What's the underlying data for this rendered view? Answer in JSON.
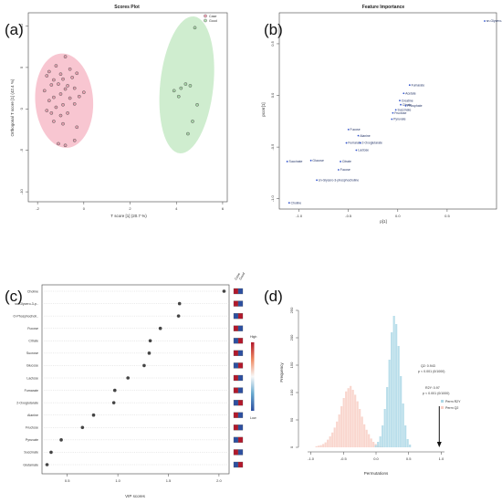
{
  "panel_labels": [
    "(a)",
    "(b)",
    "(c)",
    "(d)"
  ],
  "chart_data": [
    {
      "panel": "(a)",
      "type": "scatter",
      "title": "Scores Plot",
      "xlabel": "T score [1] (20.7 %)",
      "ylabel": "Orthogonal T score [1] (42.4 %)",
      "xlim": [
        -2.4,
        6.2
      ],
      "ylim": [
        -11.2,
        11.6
      ],
      "xticks": [
        "-2",
        "0",
        "2",
        "4",
        "6"
      ],
      "yticks": [
        "10",
        "5",
        "0",
        "-5",
        "-10"
      ],
      "legend": [
        "Case",
        "Good"
      ],
      "legend_position": "top-right",
      "colors": {
        "case_fill": "#f4a7b9",
        "good_fill": "#b5e3b5",
        "point": "#555555"
      },
      "series": [
        {
          "name": "Case",
          "points": [
            [
              -1.2,
              5.2
            ],
            [
              -0.8,
              6.3
            ],
            [
              -1.5,
              4.5
            ],
            [
              -0.6,
              4.8
            ],
            [
              -1.0,
              4.2
            ],
            [
              -1.6,
              4.0
            ],
            [
              -0.3,
              4.3
            ],
            [
              -1.3,
              3.5
            ],
            [
              -0.9,
              3.6
            ],
            [
              -0.5,
              3.8
            ],
            [
              -1.1,
              3.0
            ],
            [
              -1.4,
              2.9
            ],
            [
              -0.8,
              2.4
            ],
            [
              -1.7,
              2.2
            ],
            [
              -0.4,
              2.5
            ],
            [
              -1.0,
              1.8
            ],
            [
              -1.3,
              1.4
            ],
            [
              -0.6,
              1.3
            ],
            [
              0.0,
              2.0
            ],
            [
              -1.5,
              1.0
            ],
            [
              -0.9,
              0.5
            ],
            [
              -1.2,
              0.2
            ],
            [
              -0.4,
              0.6
            ],
            [
              -1.6,
              -0.2
            ],
            [
              -1.0,
              -0.8
            ],
            [
              -0.7,
              -0.5
            ],
            [
              -1.3,
              -1.5
            ],
            [
              -0.9,
              -1.8
            ],
            [
              -0.3,
              -2.2
            ],
            [
              -1.1,
              -4.2
            ],
            [
              -0.8,
              -4.4
            ],
            [
              -0.4,
              -3.8
            ],
            [
              -1.4,
              -0.5
            ],
            [
              -0.2,
              1.5
            ],
            [
              -0.7,
              2.8
            ]
          ]
        },
        {
          "name": "Good",
          "points": [
            [
              4.8,
              9.8
            ],
            [
              3.9,
              2.2
            ],
            [
              4.2,
              2.5
            ],
            [
              4.6,
              2.8
            ],
            [
              4.4,
              3.0
            ],
            [
              4.1,
              1.5
            ],
            [
              4.9,
              0.5
            ],
            [
              4.5,
              -3.0
            ],
            [
              4.7,
              -1.5
            ]
          ]
        }
      ]
    },
    {
      "panel": "(b)",
      "type": "scatter",
      "title": "Feature Importance",
      "xlabel": "p[1]",
      "ylabel": "pcorr[1]",
      "xlim": [
        -1.2,
        1.0
      ],
      "ylim": [
        -1.1,
        0.8
      ],
      "xticks": [
        "-1.0",
        "-0.5",
        "0.0",
        "0.5"
      ],
      "yticks": [
        "0.5",
        "0.0",
        "-0.5",
        "-1.0"
      ],
      "points": [
        {
          "name": "sn-Glycero-3-phosphocholine",
          "x": 0.88,
          "y": 0.72
        },
        {
          "name": "Fumarate",
          "x": 0.12,
          "y": 0.1
        },
        {
          "name": "Acetate",
          "x": 0.06,
          "y": 0.02
        },
        {
          "name": "Creatine",
          "x": 0.02,
          "y": -0.05
        },
        {
          "name": "Citrate",
          "x": 0.03,
          "y": -0.09
        },
        {
          "name": "Phosphate",
          "x": 0.08,
          "y": -0.1
        },
        {
          "name": "Succinate",
          "x": -0.02,
          "y": -0.14
        },
        {
          "name": "Fructose",
          "x": -0.05,
          "y": -0.17
        },
        {
          "name": "Pyruvate",
          "x": -0.06,
          "y": -0.23
        },
        {
          "name": "Fucose",
          "x": -0.5,
          "y": -0.33
        },
        {
          "name": "Alanine",
          "x": -0.4,
          "y": -0.39
        },
        {
          "name": "Fumarate",
          "x": -0.52,
          "y": -0.46
        },
        {
          "name": "2-Oxoglutarate",
          "x": -0.38,
          "y": -0.46
        },
        {
          "name": "Lactose",
          "x": -0.42,
          "y": -0.53
        },
        {
          "name": "Succinate",
          "x": -1.12,
          "y": -0.64
        },
        {
          "name": "Glucose",
          "x": -0.88,
          "y": -0.63
        },
        {
          "name": "Citrate",
          "x": -0.58,
          "y": -0.64
        },
        {
          "name": "Fucose",
          "x": -0.6,
          "y": -0.72
        },
        {
          "name": "sn-Glycero-3-phosphocholine",
          "x": -0.82,
          "y": -0.82
        },
        {
          "name": "Choline",
          "x": -1.1,
          "y": -1.04
        }
      ]
    },
    {
      "panel": "(c)",
      "type": "scatter",
      "xlabel": "VIP scores",
      "xlim": [
        0.25,
        2.1
      ],
      "xticks": [
        "0.5",
        "1.0",
        "1.5",
        "2.0"
      ],
      "heat_columns": [
        "Case",
        "Good"
      ],
      "colorbar": {
        "high": "High",
        "low": "Low"
      },
      "colors": {
        "high": "#b2182b",
        "low": "#2c4fa0",
        "dot": "#444444"
      },
      "categories": [
        "Choline",
        "sn-Glycero-3-p..",
        "O-Phosphocholi..",
        "Fucose",
        "Citrate",
        "Sucrose",
        "Glucose",
        "Lactose",
        "Fumarate",
        "2-Oxoglutarate",
        "Alanine",
        "Fructose",
        "Pyruvate",
        "Succinate",
        "Glutamate"
      ],
      "values": [
        2.05,
        1.61,
        1.6,
        1.42,
        1.32,
        1.31,
        1.26,
        1.1,
        0.97,
        0.96,
        0.76,
        0.65,
        0.44,
        0.34,
        0.3
      ],
      "case_high": [
        true,
        true,
        false,
        true,
        false,
        true,
        false,
        true,
        true,
        false,
        true,
        true,
        false,
        true,
        false
      ]
    },
    {
      "panel": "(d)",
      "type": "bar",
      "xlabel": "Permutations",
      "ylabel": "Frequency",
      "xlim": [
        -1.05,
        1.05
      ],
      "ylim": [
        0,
        260
      ],
      "xticks": [
        "-1.0",
        "-0.5",
        "0.0",
        "0.5",
        "1.0"
      ],
      "yticks": [
        "0",
        "50",
        "100",
        "150",
        "200",
        "250"
      ],
      "legend": [
        "Perm R2Y",
        "Perm Q2"
      ],
      "legend_position": "right",
      "colors": {
        "r2y": "#add8e6",
        "q2": "#f8cfc5"
      },
      "bin_width": 0.035,
      "series": [
        {
          "name": "Perm Q2",
          "bin_starts": [
            -0.93,
            -0.895,
            -0.86,
            -0.825,
            -0.79,
            -0.755,
            -0.72,
            -0.685,
            -0.65,
            -0.615,
            -0.58,
            -0.545,
            -0.51,
            -0.475,
            -0.44,
            -0.405,
            -0.37,
            -0.335,
            -0.3,
            -0.265,
            -0.23,
            -0.195,
            -0.16,
            -0.125,
            -0.09,
            -0.055,
            -0.02,
            0.015,
            0.05,
            0.085
          ],
          "values": [
            2,
            3,
            4,
            6,
            9,
            14,
            20,
            27,
            36,
            47,
            60,
            75,
            90,
            102,
            108,
            112,
            105,
            96,
            84,
            70,
            56,
            42,
            32,
            24,
            16,
            10,
            6,
            4,
            2,
            1
          ]
        },
        {
          "name": "Perm R2Y",
          "bin_starts": [
            -0.02,
            0.015,
            0.05,
            0.085,
            0.12,
            0.155,
            0.19,
            0.225,
            0.26,
            0.295,
            0.33,
            0.365,
            0.4,
            0.435,
            0.47,
            0.505
          ],
          "values": [
            4,
            10,
            20,
            40,
            70,
            110,
            160,
            210,
            240,
            225,
            185,
            130,
            80,
            40,
            15,
            5
          ]
        }
      ],
      "annotations": [
        {
          "text": "Q2: 0.943",
          "sub": "p < 0.001 (0/1000)"
        },
        {
          "text": "R2Y: 0.97",
          "sub": "p < 0.001 (0/1000)"
        }
      ],
      "observed": {
        "q2": 0.943,
        "r2y": 0.97
      }
    }
  ]
}
